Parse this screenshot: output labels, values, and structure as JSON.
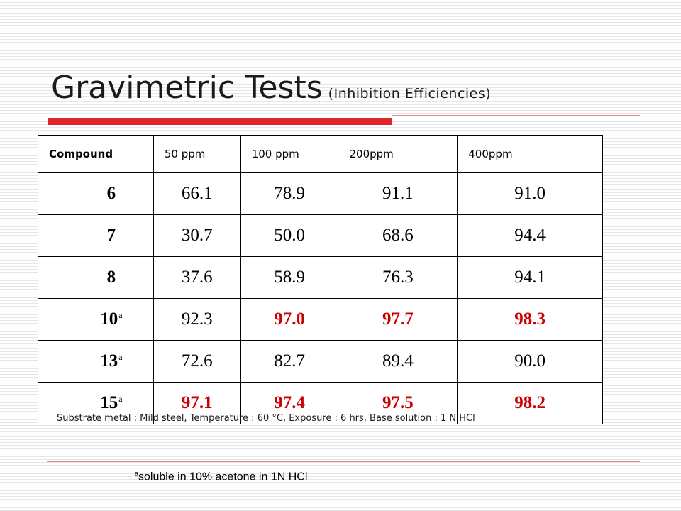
{
  "slide": {
    "title": "Gravimetric Tests",
    "subtitle": "(Inhibition Efficiencies)",
    "accent_color": "#e0262b",
    "highlight_color": "#cc0000"
  },
  "table": {
    "columns": [
      "Compound",
      "50 ppm",
      "100 ppm",
      "200ppm",
      "400ppm"
    ],
    "rows": [
      {
        "compound": "6",
        "note": "",
        "values": [
          "66.1",
          "78.9",
          "91.1",
          "91.0"
        ],
        "highlighted": [
          false,
          false,
          false,
          false
        ]
      },
      {
        "compound": "7",
        "note": "",
        "values": [
          "30.7",
          "50.0",
          "68.6",
          "94.4"
        ],
        "highlighted": [
          false,
          false,
          false,
          false
        ]
      },
      {
        "compound": "8",
        "note": "",
        "values": [
          "37.6",
          "58.9",
          "76.3",
          "94.1"
        ],
        "highlighted": [
          false,
          false,
          false,
          false
        ]
      },
      {
        "compound": "10",
        "note": "a",
        "values": [
          "92.3",
          "97.0",
          "97.7",
          "98.3"
        ],
        "highlighted": [
          false,
          true,
          true,
          true
        ]
      },
      {
        "compound": "13",
        "note": "a",
        "values": [
          "72.6",
          "82.7",
          "89.4",
          "90.0"
        ],
        "highlighted": [
          false,
          false,
          false,
          false
        ]
      },
      {
        "compound": "15",
        "note": "a",
        "values": [
          "97.1",
          "97.4",
          "97.5",
          "98.2"
        ],
        "highlighted": [
          true,
          true,
          true,
          true
        ]
      }
    ]
  },
  "conditions": "Substrate metal : Mild steel, Temperature : 60 °C, Exposure : 6 hrs, Base solution : 1 N HCl",
  "footnote": {
    "mark": "a",
    "text": "soluble in 10% acetone in 1N HCl"
  }
}
